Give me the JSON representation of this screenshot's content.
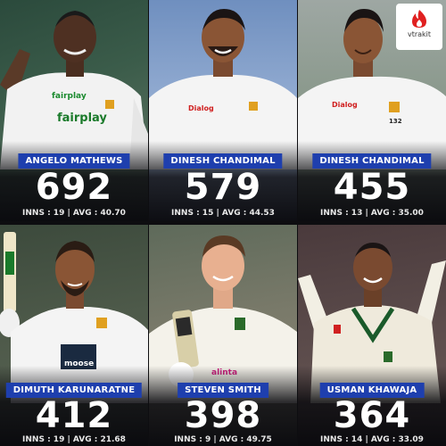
{
  "brand": {
    "name": "vtrakit",
    "color": "#e02020"
  },
  "accent_color": "#1e3fae",
  "players": [
    {
      "name": "ANGELO MATHEWS",
      "runs": "692",
      "stats": "INNS : 19 | AVG : 40.70",
      "sponsor_1": "fairplay",
      "sponsor_2": "fairplay"
    },
    {
      "name": "DINESH CHANDIMAL",
      "runs": "579",
      "stats": "INNS : 15 | AVG : 44.53",
      "sponsor_1": "Dialog"
    },
    {
      "name": "DINESH CHANDIMAL",
      "runs": "455",
      "stats": "INNS : 13 | AVG : 35.00",
      "sponsor_1": "Dialog",
      "shirt_number": "132"
    },
    {
      "name": "DIMUTH KARUNARATNE",
      "runs": "412",
      "stats": "INNS : 19 | AVG : 21.68",
      "sponsor_1": "moose"
    },
    {
      "name": "STEVEN SMITH",
      "runs": "398",
      "stats": "INNS : 9 | AVG : 49.75",
      "sponsor_1": "alinta"
    },
    {
      "name": "USMAN KHAWAJA",
      "runs": "364",
      "stats": "INNS : 14 | AVG : 33.09"
    }
  ]
}
